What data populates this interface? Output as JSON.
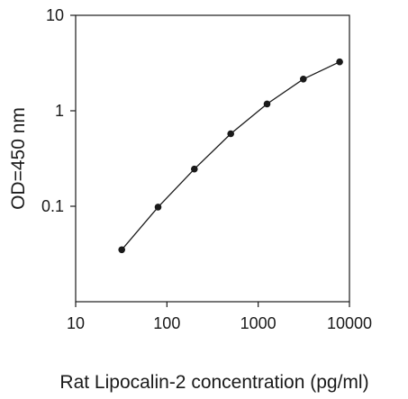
{
  "chart_data": {
    "type": "line",
    "title": "",
    "xlabel": "Rat Lipocalin-2 concentration (pg/ml)",
    "ylabel": "OD=450 nm",
    "xscale": "log",
    "yscale": "log",
    "xlim": [
      10,
      10000
    ],
    "ylim": [
      0.01,
      10
    ],
    "x_ticks": [
      "10",
      "100",
      "1000",
      "10000"
    ],
    "y_ticks": [
      "0.1",
      "1",
      "10"
    ],
    "grid": false,
    "legend": "none",
    "series": [
      {
        "color": "#1a1a1a",
        "marker": "circle",
        "x": [
          32,
          80,
          200,
          500,
          1250,
          3125,
          7800
        ],
        "y": [
          0.035,
          0.098,
          0.245,
          0.575,
          1.18,
          2.15,
          3.25
        ]
      }
    ]
  }
}
